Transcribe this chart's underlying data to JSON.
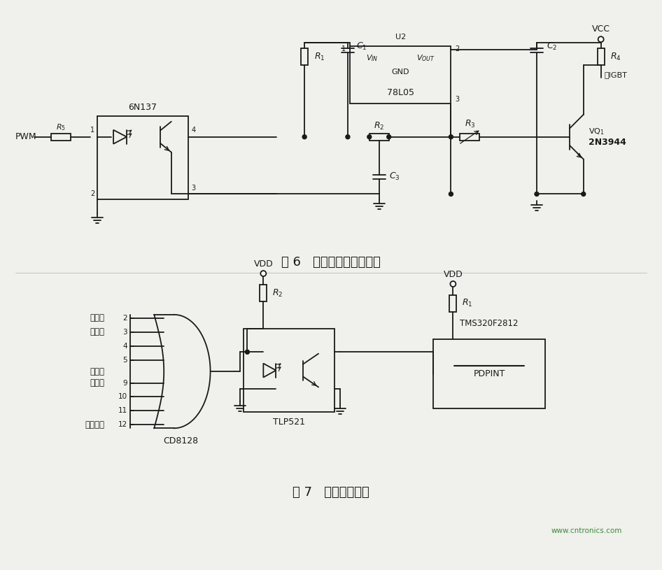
{
  "bg_color": "#f0f0ec",
  "line_color": "#1a1a1a",
  "fig6_caption": "图 6   光电隔离的驱动回路",
  "fig7_caption": "图 7   故障保护电路",
  "watermark": "www.cntronics.com",
  "watermark_color": "#3a8a3a"
}
